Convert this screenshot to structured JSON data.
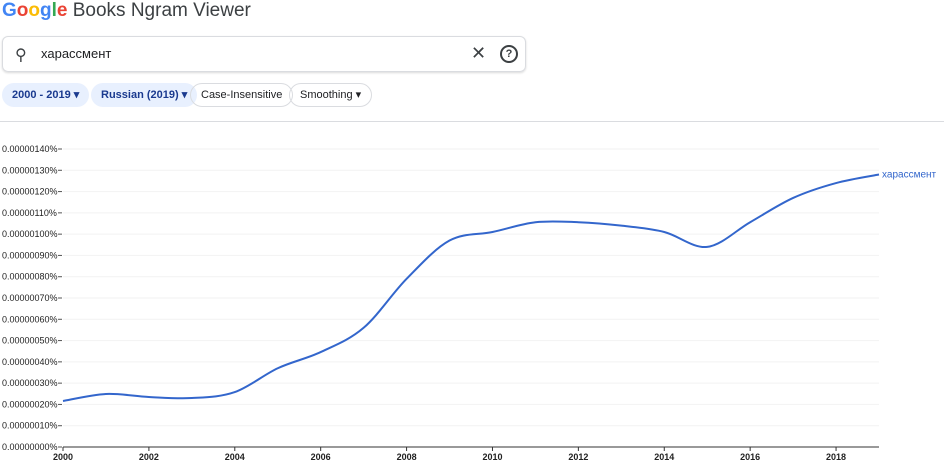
{
  "header": {
    "logo": "Google",
    "title": "Books Ngram Viewer"
  },
  "search": {
    "value": "харассмент",
    "search_icon": "search-icon",
    "clear_icon": "close-icon",
    "help_icon": "help-icon"
  },
  "filters": {
    "year_range": "2000 - 2019",
    "corpus": "Russian (2019)",
    "case": "Case-Insensitive",
    "smoothing": "Smoothing"
  },
  "chart_data": {
    "type": "line",
    "x": [
      2000,
      2001,
      2002,
      2003,
      2004,
      2005,
      2006,
      2007,
      2008,
      2009,
      2010,
      2011,
      2012,
      2013,
      2014,
      2015,
      2016,
      2017,
      2018,
      2019
    ],
    "series": [
      {
        "name": "харассмент",
        "color": "#3366cc",
        "values": [
          2.16e-07,
          2.49e-07,
          2.35e-07,
          2.3e-07,
          2.58e-07,
          3.7e-07,
          4.46e-07,
          5.6e-07,
          7.9e-07,
          9.7e-07,
          1.01e-06,
          1.056e-06,
          1.056e-06,
          1.04e-06,
          1.01e-06,
          9.4e-07,
          1.056e-06,
          1.17e-06,
          1.24e-06,
          1.28e-06
        ]
      }
    ],
    "xlim": [
      2000,
      2019
    ],
    "ylim": [
      0,
      1.4e-06
    ],
    "xticks": [
      "2000",
      "2002",
      "2004",
      "2006",
      "2008",
      "2010",
      "2012",
      "2014",
      "2016",
      "2018"
    ],
    "yticks": [
      "0.00000000%",
      "0.00000010%",
      "0.00000020%",
      "0.00000030%",
      "0.00000040%",
      "0.00000050%",
      "0.00000060%",
      "0.00000070%",
      "0.00000080%",
      "0.00000090%",
      "0.00000100%",
      "0.00000110%",
      "0.00000120%",
      "0.00000130%",
      "0.00000140%"
    ],
    "grid": true,
    "legend": "line-end label"
  }
}
